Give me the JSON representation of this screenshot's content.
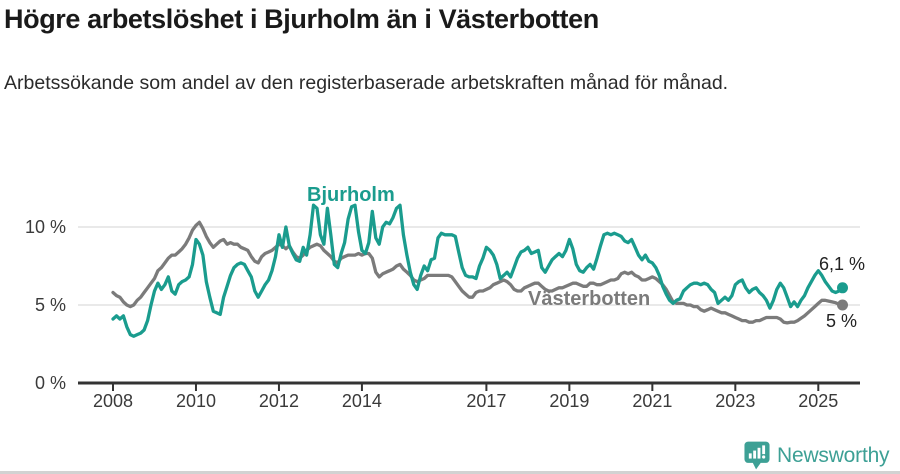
{
  "header": {
    "title": "Högre arbetslöshet i Bjurholm än i Västerbotten",
    "subtitle": "Arbetssökande som andel av den registerbaserade arbetskraften månad för månad."
  },
  "footer": {
    "brand": "Newsworthy",
    "brand_color": "#3da095",
    "logo_icon": "bar-chart-speech-bubble-icon"
  },
  "chart_data": {
    "type": "line",
    "unit": "%",
    "frequency": "monthly",
    "x_start_year": 2008,
    "points_per_year": 12,
    "grid": "horizontal",
    "axis_color": "#333333",
    "gridline_color": "#e2e2e2",
    "x_axis": {
      "ticks": [
        {
          "year": 2008,
          "label": "2008"
        },
        {
          "year": 2010,
          "label": "2010"
        },
        {
          "year": 2012,
          "label": "2012"
        },
        {
          "year": 2014,
          "label": "2014"
        },
        {
          "year": 2017,
          "label": "2017"
        },
        {
          "year": 2019,
          "label": "2019"
        },
        {
          "year": 2021,
          "label": "2021"
        },
        {
          "year": 2023,
          "label": "2023"
        },
        {
          "year": 2025,
          "label": "2025"
        }
      ]
    },
    "y_axis": {
      "range": [
        0,
        12.3
      ],
      "ticks": [
        {
          "value": 0,
          "label": "0 %"
        },
        {
          "value": 5,
          "label": "5 %"
        },
        {
          "value": 10,
          "label": "10 %"
        }
      ]
    },
    "series": [
      {
        "name": "Bjurholm",
        "color": "#1a9c8e",
        "end_label": "6,1 %",
        "end_value": 6.1,
        "values": [
          4.1,
          4.3,
          4.1,
          4.3,
          3.6,
          3.1,
          3.0,
          3.1,
          3.2,
          3.4,
          4.0,
          5.0,
          5.9,
          6.4,
          6.0,
          6.3,
          6.8,
          5.9,
          5.7,
          6.3,
          6.5,
          6.6,
          6.8,
          7.6,
          9.2,
          8.9,
          8.2,
          6.5,
          5.5,
          4.6,
          4.5,
          4.4,
          5.5,
          6.2,
          6.9,
          7.4,
          7.6,
          7.7,
          7.6,
          7.2,
          6.8,
          5.9,
          5.5,
          5.9,
          6.3,
          6.6,
          7.2,
          8.1,
          9.5,
          8.7,
          10.0,
          8.8,
          8.3,
          7.9,
          7.8,
          8.7,
          8.2,
          9.5,
          11.4,
          11.2,
          9.5,
          8.9,
          11.2,
          9.5,
          7.6,
          7.4,
          8.3,
          9.0,
          10.5,
          11.3,
          11.4,
          9.7,
          8.5,
          8.3,
          9.0,
          11.0,
          9.3,
          8.9,
          10.0,
          10.3,
          10.2,
          10.6,
          11.2,
          11.4,
          9.5,
          8.2,
          7.1,
          6.3,
          6.0,
          6.9,
          7.5,
          7.2,
          7.9,
          8.0,
          9.3,
          9.6,
          9.5,
          9.5,
          9.5,
          9.4,
          8.4,
          7.4,
          6.9,
          6.8,
          6.8,
          6.7,
          7.5,
          8.0,
          8.7,
          8.5,
          8.2,
          7.6,
          6.7,
          6.9,
          7.1,
          6.8,
          7.4,
          8.0,
          8.4,
          8.5,
          8.7,
          8.3,
          8.4,
          8.5,
          7.4,
          7.1,
          7.5,
          7.9,
          8.1,
          8.3,
          8.1,
          8.5,
          9.2,
          8.6,
          7.6,
          7.2,
          7.1,
          7.4,
          7.6,
          7.3,
          8.0,
          8.8,
          9.5,
          9.6,
          9.5,
          9.6,
          9.5,
          9.4,
          9.1,
          9.0,
          9.2,
          8.7,
          8.2,
          7.9,
          8.2,
          7.8,
          7.7,
          7.4,
          6.9,
          6.2,
          5.7,
          5.3,
          5.1,
          5.3,
          5.4,
          5.9,
          6.1,
          6.3,
          6.4,
          6.4,
          6.3,
          6.4,
          6.3,
          6.0,
          5.8,
          5.1,
          5.3,
          5.5,
          5.3,
          5.6,
          6.3,
          6.5,
          6.6,
          6.1,
          5.8,
          6.0,
          6.1,
          5.8,
          5.6,
          5.3,
          4.8,
          5.3,
          6.0,
          6.4,
          6.1,
          5.5,
          4.9,
          5.2,
          4.9,
          5.3,
          5.6,
          6.1,
          6.5,
          6.9,
          7.2,
          6.9,
          6.5,
          6.2,
          5.9,
          5.8,
          5.9,
          6.1
        ]
      },
      {
        "name": "Västerbotten",
        "color": "#7b7b7b",
        "end_label": "5 %",
        "end_value": 5.0,
        "values": [
          5.8,
          5.6,
          5.5,
          5.2,
          5.0,
          4.9,
          5.0,
          5.3,
          5.5,
          5.8,
          6.1,
          6.4,
          6.7,
          7.2,
          7.4,
          7.7,
          8.0,
          8.2,
          8.2,
          8.4,
          8.6,
          8.9,
          9.3,
          9.8,
          10.1,
          10.3,
          9.9,
          9.4,
          9.0,
          8.7,
          8.9,
          9.1,
          9.2,
          8.9,
          9.0,
          8.9,
          8.9,
          8.7,
          8.6,
          8.5,
          8.1,
          7.8,
          7.7,
          8.1,
          8.3,
          8.4,
          8.5,
          8.7,
          8.9,
          8.8,
          8.6,
          8.8,
          8.4,
          8.1,
          8.0,
          8.2,
          8.5,
          8.7,
          8.8,
          8.9,
          8.8,
          8.5,
          8.3,
          8.1,
          7.8,
          7.7,
          8.0,
          8.1,
          8.2,
          8.2,
          8.2,
          8.3,
          8.2,
          8.3,
          8.3,
          8.0,
          7.1,
          6.8,
          7.0,
          7.1,
          7.2,
          7.3,
          7.5,
          7.6,
          7.3,
          7.1,
          6.9,
          6.6,
          6.5,
          6.6,
          6.7,
          6.9,
          6.9,
          6.9,
          6.9,
          6.9,
          6.9,
          6.9,
          6.8,
          6.5,
          6.2,
          5.9,
          5.7,
          5.5,
          5.5,
          5.8,
          5.9,
          5.9,
          6.0,
          6.1,
          6.3,
          6.4,
          6.5,
          6.6,
          6.5,
          6.3,
          6.0,
          5.9,
          5.9,
          6.1,
          6.2,
          6.3,
          6.4,
          6.4,
          6.2,
          6.0,
          5.9,
          5.9,
          6.0,
          6.1,
          6.1,
          6.2,
          6.3,
          6.4,
          6.4,
          6.3,
          6.2,
          6.2,
          6.4,
          6.4,
          6.3,
          6.3,
          6.4,
          6.5,
          6.6,
          6.6,
          6.7,
          7.0,
          7.1,
          7.0,
          7.1,
          6.9,
          6.8,
          6.6,
          6.6,
          6.7,
          6.8,
          6.7,
          6.5,
          6.3,
          6.0,
          5.6,
          5.2,
          5.1,
          5.1,
          5.1,
          5.0,
          5.0,
          4.9,
          4.9,
          4.7,
          4.6,
          4.7,
          4.8,
          4.7,
          4.6,
          4.5,
          4.5,
          4.4,
          4.3,
          4.2,
          4.1,
          4.0,
          4.0,
          3.9,
          3.9,
          4.0,
          4.0,
          4.1,
          4.2,
          4.2,
          4.2,
          4.2,
          4.1,
          3.9,
          3.85,
          3.9,
          3.9,
          4.0,
          4.15,
          4.3,
          4.5,
          4.7,
          4.9,
          5.1,
          5.3,
          5.3,
          5.25,
          5.2,
          5.15,
          5.05,
          5.0
        ]
      }
    ]
  }
}
